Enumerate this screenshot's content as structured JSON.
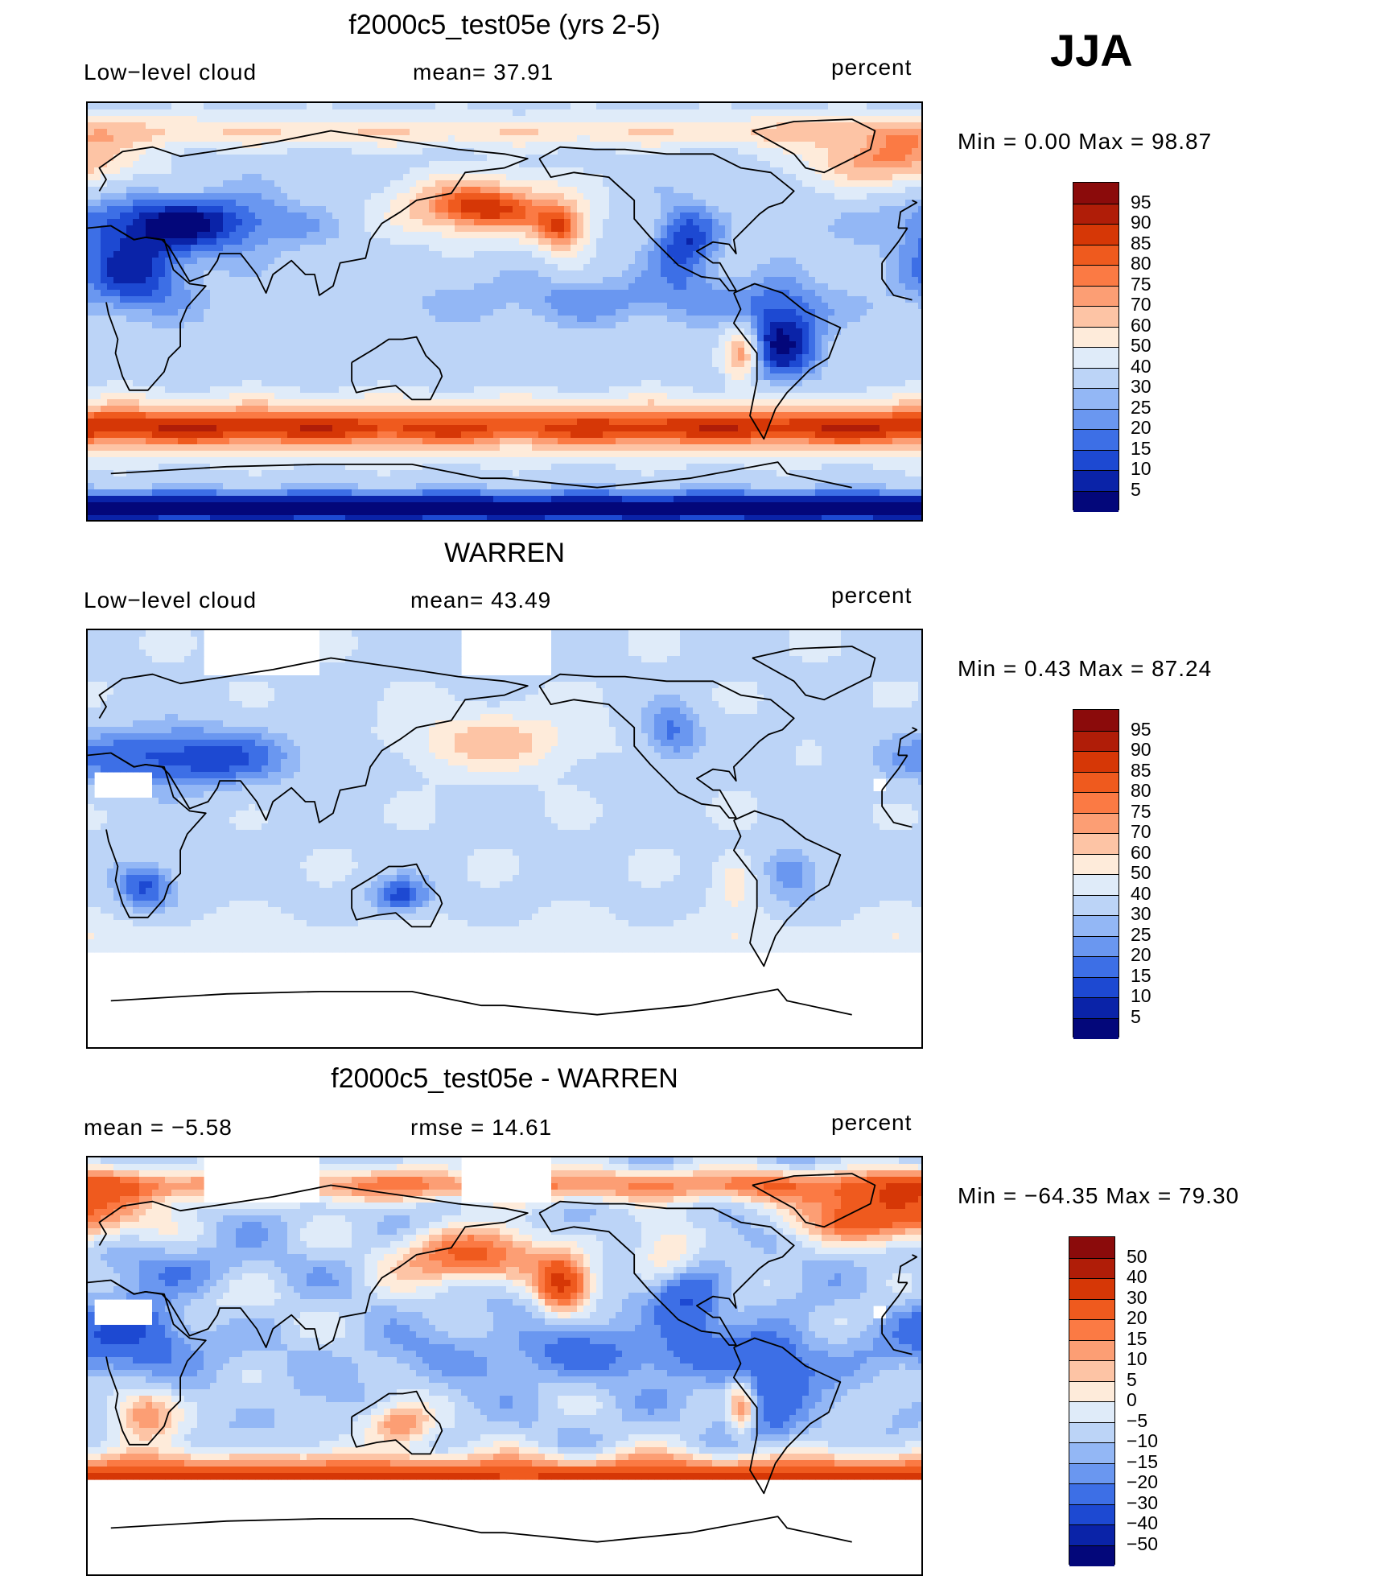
{
  "season": "JJA",
  "panels": [
    {
      "title": "f2000c5_test05e (yrs 2-5)",
      "left_label": "Low−level  cloud",
      "center_label": "mean=   37.91",
      "right_label": "percent",
      "minmax": "Min  =     0.00  Max  =    98.87",
      "field": "model",
      "levels": [
        "95",
        "90",
        "85",
        "80",
        "75",
        "70",
        "60",
        "50",
        "40",
        "30",
        "25",
        "20",
        "15",
        "10",
        "5"
      ],
      "colors": [
        "#8b0b0b",
        "#b01d08",
        "#d63706",
        "#ef5a1e",
        "#fb7a44",
        "#fc9e74",
        "#fdc4a5",
        "#feebda",
        "#dfebf9",
        "#bcd4f7",
        "#93b7f5",
        "#6a97f0",
        "#3d6fe6",
        "#1d49d2",
        "#0a23a8",
        "#03077a"
      ]
    },
    {
      "title": "WARREN",
      "left_label": "Low−level  cloud",
      "center_label": "mean=   43.49",
      "right_label": "percent",
      "minmax": "Min  =     0.43  Max  =    87.24",
      "field": "obs",
      "levels": [
        "95",
        "90",
        "85",
        "80",
        "75",
        "70",
        "60",
        "50",
        "40",
        "30",
        "25",
        "20",
        "15",
        "10",
        "5"
      ],
      "colors": [
        "#8b0b0b",
        "#b01d08",
        "#d63706",
        "#ef5a1e",
        "#fb7a44",
        "#fc9e74",
        "#fdc4a5",
        "#feebda",
        "#dfebf9",
        "#bcd4f7",
        "#93b7f5",
        "#6a97f0",
        "#3d6fe6",
        "#1d49d2",
        "#0a23a8",
        "#03077a"
      ]
    },
    {
      "title": "f2000c5_test05e - WARREN",
      "left_label": "mean  =    −5.58",
      "center_label": "rmse  =    14.61",
      "right_label": "percent",
      "minmax": "Min  = −64.35  Max  =    79.30",
      "field": "diff",
      "levels": [
        "50",
        "40",
        "30",
        "20",
        "15",
        "10",
        "5",
        "0",
        "−5",
        "−10",
        "−15",
        "−20",
        "−30",
        "−40",
        "−50"
      ],
      "colors": [
        "#8b0b0b",
        "#b01d08",
        "#d63706",
        "#ef5a1e",
        "#fb7a44",
        "#fc9e74",
        "#fdc4a5",
        "#feebda",
        "#dfebf9",
        "#bcd4f7",
        "#93b7f5",
        "#6a97f0",
        "#3d6fe6",
        "#1d49d2",
        "#0a23a8",
        "#03077a"
      ]
    }
  ]
}
